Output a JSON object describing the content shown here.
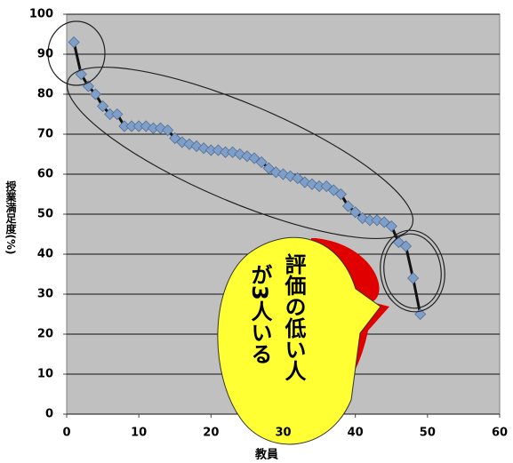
{
  "chart_data": {
    "type": "line",
    "x": [
      1,
      2,
      3,
      4,
      5,
      6,
      7,
      8,
      9,
      10,
      11,
      12,
      13,
      14,
      15,
      16,
      17,
      18,
      19,
      20,
      21,
      22,
      23,
      24,
      25,
      26,
      27,
      28,
      29,
      30,
      31,
      32,
      33,
      34,
      35,
      36,
      37,
      38,
      39,
      40,
      41,
      42,
      43,
      44,
      45,
      46,
      47,
      48,
      49
    ],
    "values": [
      93,
      85,
      82,
      80,
      77,
      75,
      75,
      72,
      72,
      72,
      72,
      71.5,
      71.5,
      71,
      69,
      68,
      67.5,
      67,
      66.5,
      66,
      66,
      65.5,
      65.5,
      65,
      64.5,
      64,
      63,
      61.5,
      60.5,
      60,
      59.5,
      59,
      58,
      57.5,
      57,
      57,
      56,
      55,
      52,
      50.5,
      49,
      48.5,
      48.5,
      48,
      47,
      43,
      42,
      34,
      25
    ],
    "color": "#7f9fc8",
    "xlim": [
      0,
      60
    ],
    "xticks": [
      0,
      10,
      20,
      30,
      40,
      50,
      60
    ],
    "ylim": [
      0,
      100
    ],
    "yticks": [
      0,
      10,
      20,
      30,
      40,
      50,
      60,
      70,
      80,
      90,
      100
    ],
    "grid": true,
    "xlabel": "教員",
    "ylabel": "授業満足度(%)",
    "annotation": [
      "評価の低い人",
      "が3人いる"
    ]
  }
}
